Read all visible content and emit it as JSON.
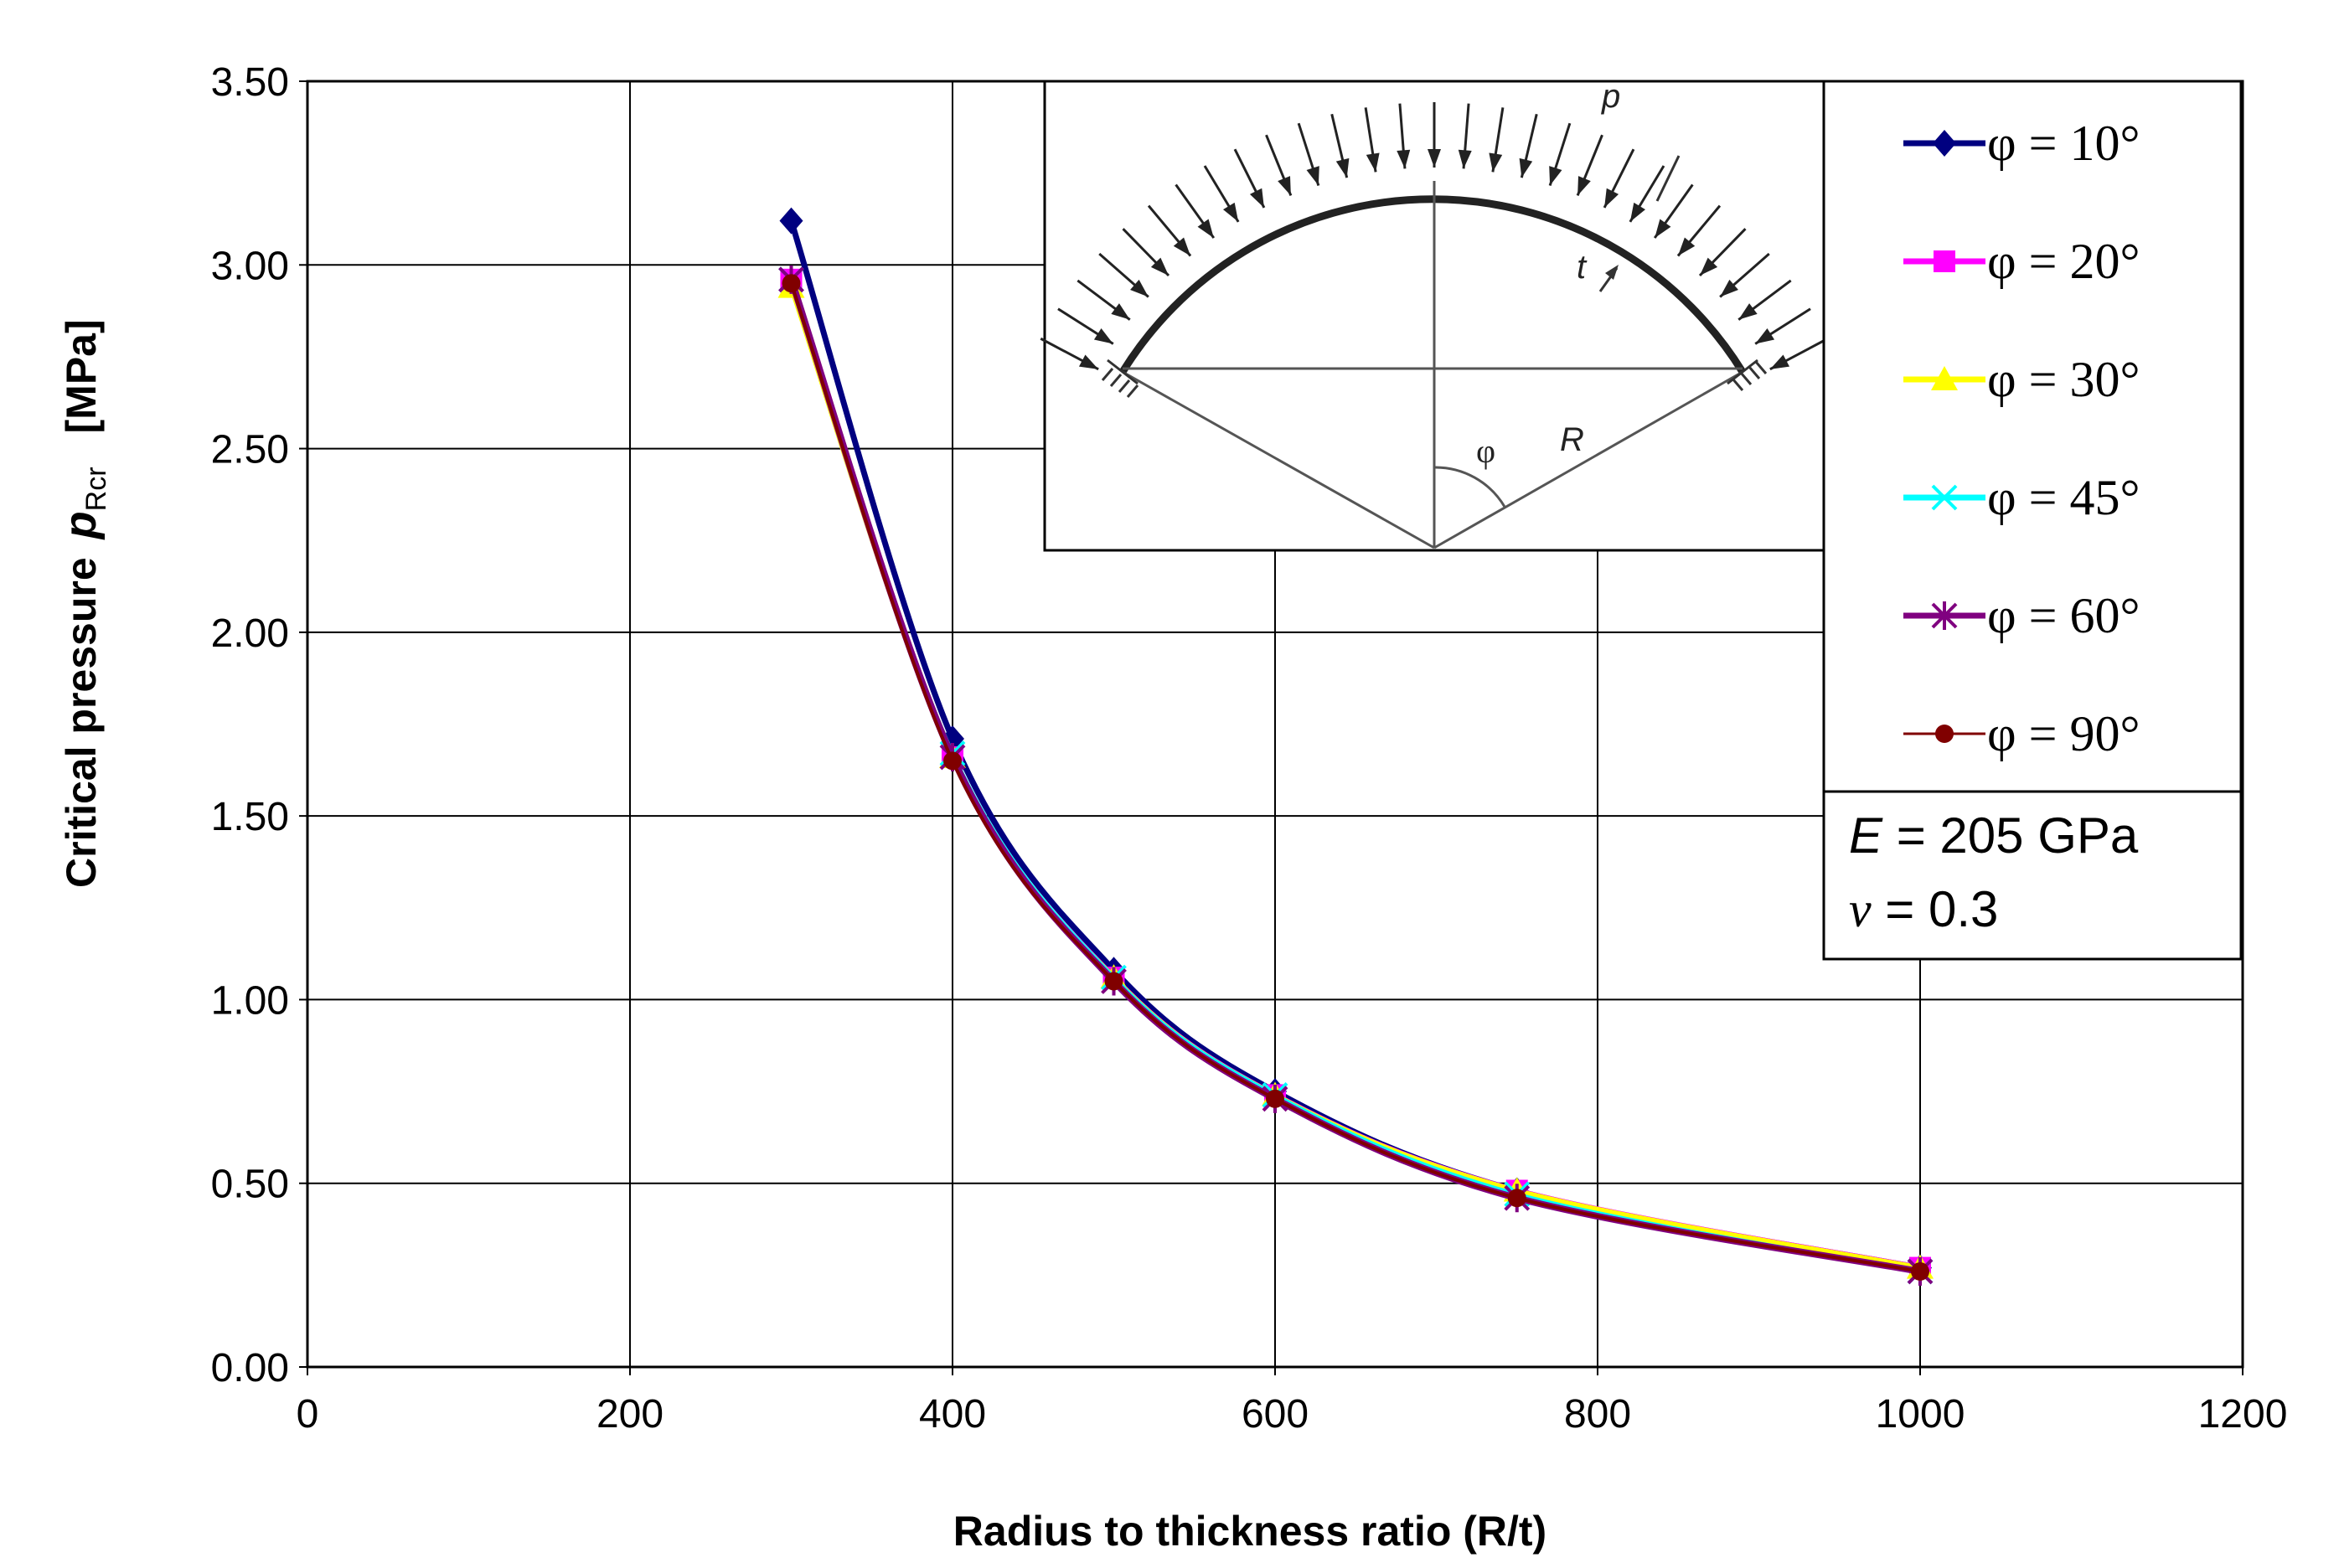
{
  "chart_data": {
    "type": "line",
    "xlabel": "Radius to thickness ratio (R/t)",
    "ylabel_main": "Critical pressure",
    "ylabel_symbol": "p",
    "ylabel_subscript": "Rcr",
    "ylabel_unit": "[MPa]",
    "xlim": [
      0,
      1200
    ],
    "ylim": [
      0,
      3.5
    ],
    "x_ticks": [
      "0",
      "200",
      "400",
      "600",
      "800",
      "1000",
      "1200"
    ],
    "y_ticks": [
      "0.00",
      "0.50",
      "1.00",
      "1.50",
      "2.00",
      "2.50",
      "3.00",
      "3.50"
    ],
    "grid": true,
    "legend_position": "top-right",
    "x": [
      300,
      400,
      500,
      600,
      750,
      1000
    ],
    "series": [
      {
        "name": "φ = 10°",
        "color": "#000080",
        "marker": "diamond",
        "values": [
          3.12,
          1.71,
          1.08,
          0.75,
          0.48,
          0.27
        ]
      },
      {
        "name": "φ = 20°",
        "color": "#FF00FF",
        "marker": "square",
        "values": [
          2.96,
          1.66,
          1.06,
          0.74,
          0.48,
          0.27
        ]
      },
      {
        "name": "φ = 30°",
        "color": "#FFFF00",
        "marker": "triangle",
        "values": [
          2.94,
          1.66,
          1.06,
          0.74,
          0.48,
          0.27
        ]
      },
      {
        "name": "φ = 45°",
        "color": "#00FFFF",
        "marker": "x",
        "values": [
          2.96,
          1.67,
          1.06,
          0.74,
          0.47,
          0.26
        ]
      },
      {
        "name": "φ = 60°",
        "color": "#800080",
        "marker": "asterisk",
        "values": [
          2.96,
          1.66,
          1.05,
          0.73,
          0.46,
          0.26
        ]
      },
      {
        "name": "φ = 90°",
        "color": "#800000",
        "marker": "dot",
        "values": [
          2.95,
          1.65,
          1.05,
          0.73,
          0.46,
          0.26
        ]
      }
    ],
    "properties": {
      "E_symbol": "E",
      "E_value": " = 205 GPa",
      "nu_symbol": "ν",
      "nu_value": " = 0.3"
    },
    "inset_labels": {
      "pressure": "p",
      "thickness": "t",
      "angle": "φ",
      "radius": "R"
    }
  }
}
